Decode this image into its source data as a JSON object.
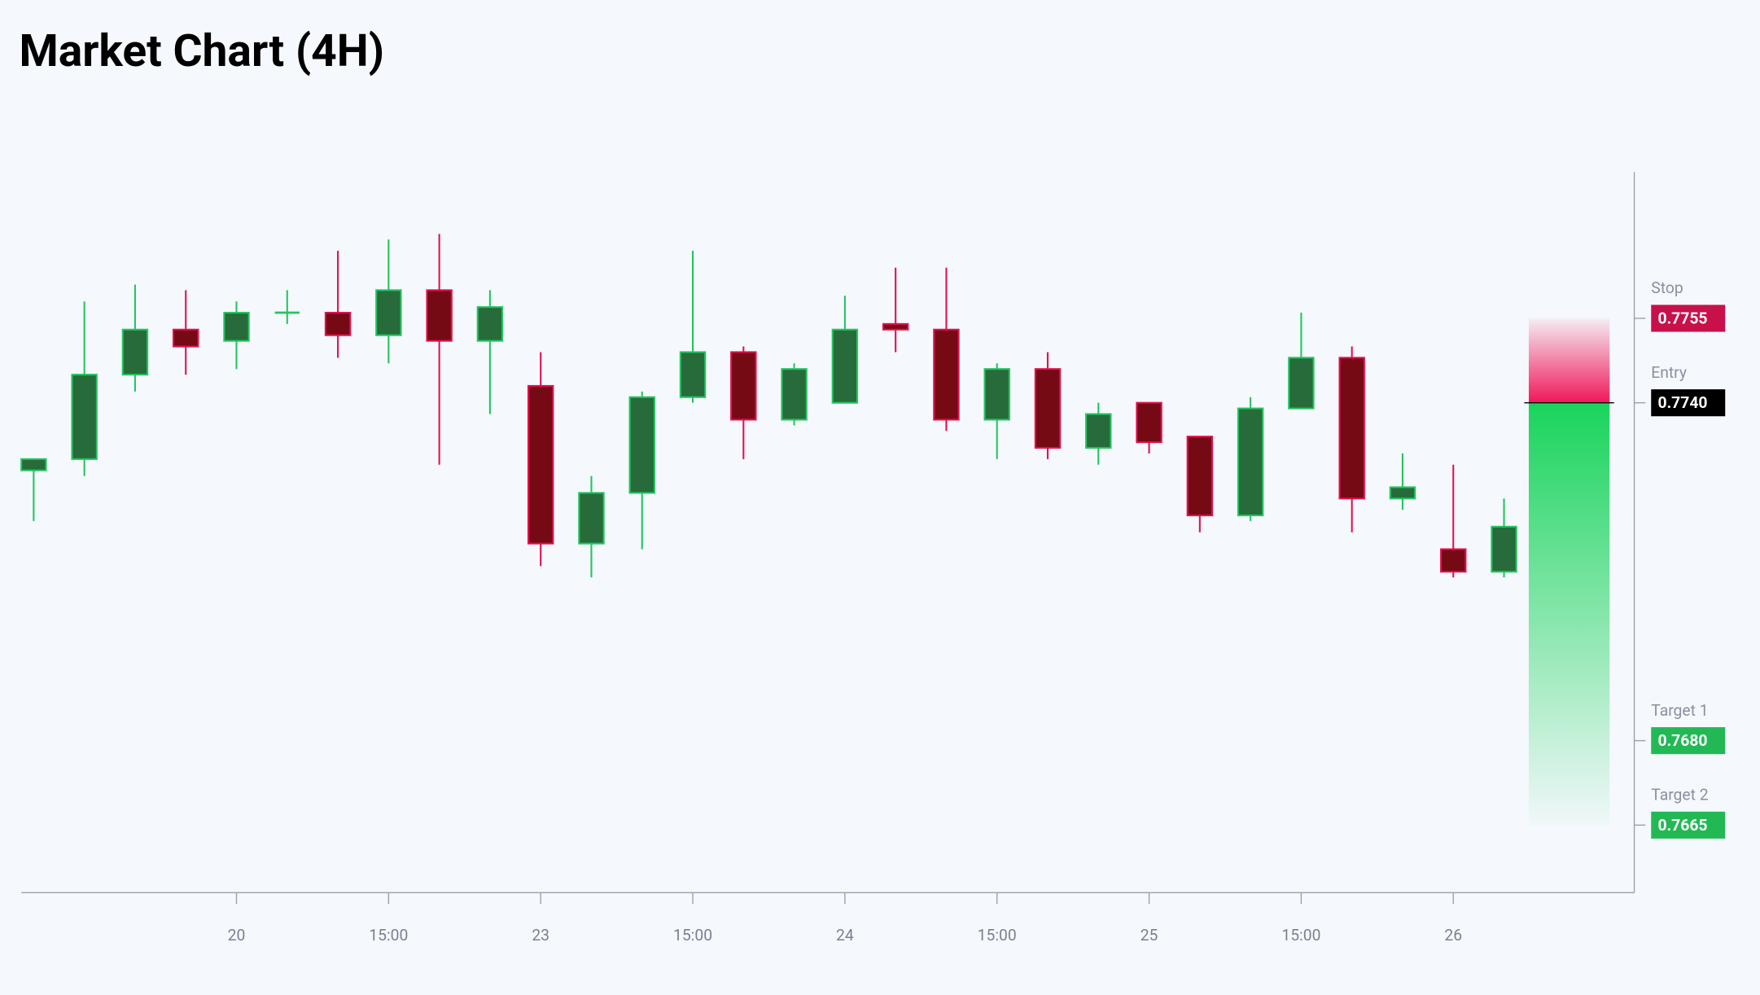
{
  "chart_data": {
    "type": "candlestick",
    "title": "Market Chart (4H)",
    "categories": [
      null,
      null,
      null,
      null,
      "20",
      null,
      null,
      "15:00",
      null,
      null,
      "23",
      null,
      null,
      "15:00",
      null,
      null,
      "24",
      null,
      null,
      "15:00",
      null,
      null,
      "25",
      null,
      null,
      "15:00",
      null,
      null,
      "26",
      null
    ],
    "open": [
      0.7728,
      0.773,
      0.7745,
      0.7753,
      0.7751,
      0.7756,
      0.7756,
      0.7752,
      0.776,
      0.7751,
      0.7743,
      0.7715,
      0.7724,
      0.7741,
      0.7749,
      0.7737,
      0.774,
      0.7754,
      0.7753,
      0.7737,
      0.7746,
      0.7732,
      0.774,
      0.7734,
      0.772,
      0.7739,
      0.7748,
      0.7723,
      0.7714,
      0.771
    ],
    "high": [
      0.773,
      0.7758,
      0.7761,
      0.776,
      0.7758,
      0.776,
      0.7767,
      0.7769,
      0.777,
      0.776,
      0.7749,
      0.7727,
      0.7742,
      0.7767,
      0.775,
      0.7747,
      0.7759,
      0.7764,
      0.7764,
      0.7747,
      0.7749,
      0.774,
      0.774,
      0.7734,
      0.7741,
      0.7756,
      0.775,
      0.7731,
      0.7729,
      0.7723
    ],
    "low": [
      0.7719,
      0.7727,
      0.7742,
      0.7745,
      0.7746,
      0.7754,
      0.7748,
      0.7747,
      0.7729,
      0.7738,
      0.7711,
      0.7709,
      0.7714,
      0.774,
      0.773,
      0.7736,
      0.774,
      0.7749,
      0.7735,
      0.773,
      0.773,
      0.7729,
      0.7731,
      0.7717,
      0.7719,
      0.7739,
      0.7717,
      0.7721,
      0.7709,
      0.7709
    ],
    "close": [
      0.773,
      0.7745,
      0.7753,
      0.775,
      0.7756,
      0.7756,
      0.7752,
      0.776,
      0.7751,
      0.7757,
      0.7715,
      0.7724,
      0.7741,
      0.7749,
      0.7737,
      0.7746,
      0.7753,
      0.7753,
      0.7737,
      0.7746,
      0.7732,
      0.7738,
      0.7733,
      0.772,
      0.7739,
      0.7748,
      0.7723,
      0.7725,
      0.771,
      0.7718
    ],
    "up_color": "#276b3b",
    "up_border": "#22c55e",
    "down_color": "#750a14",
    "down_border": "#e0114f",
    "levels": [
      {
        "name": "Stop",
        "value": 0.7755,
        "label": "0.7755",
        "color": "#c8104a"
      },
      {
        "name": "Entry",
        "value": 0.774,
        "label": "0.7740",
        "color": "#000000"
      },
      {
        "name": "Target 1",
        "value": 0.768,
        "label": "0.7680",
        "color": "#22b955"
      },
      {
        "name": "Target 2",
        "value": 0.7665,
        "label": "0.7665",
        "color": "#22b955"
      }
    ],
    "ylim": [
      0.7653,
      0.7781
    ]
  }
}
